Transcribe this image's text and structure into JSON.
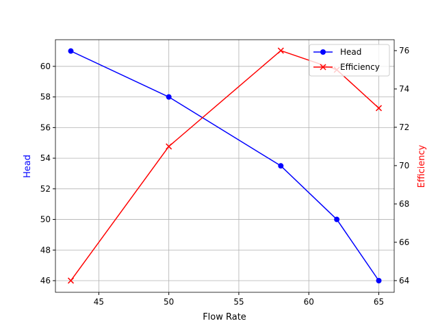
{
  "chart_data": {
    "type": "line",
    "title": "",
    "xlabel": "Flow Rate",
    "ylabel_left": "Head",
    "ylabel_right": "Efficiency",
    "xlim": [
      41.9,
      66.1
    ],
    "ylim_left": [
      45.24,
      61.74
    ],
    "ylim_right": [
      63.39,
      76.57
    ],
    "x_ticks": [
      45,
      50,
      55,
      60,
      65
    ],
    "y_ticks_left": [
      46,
      48,
      50,
      52,
      54,
      56,
      58,
      60
    ],
    "y_ticks_right": [
      64,
      66,
      68,
      70,
      72,
      74,
      76
    ],
    "grid": true,
    "legend_placement": "top-right",
    "x": [
      43,
      50,
      58,
      62,
      65
    ],
    "series": [
      {
        "name": "Head",
        "axis": "left",
        "values": [
          61,
          58,
          53.5,
          50,
          46
        ],
        "color": "#0000ff",
        "marker": "circle"
      },
      {
        "name": "Efficiency",
        "axis": "right",
        "values": [
          64,
          71,
          76,
          75,
          73
        ],
        "color": "#ff0000",
        "marker": "x"
      }
    ]
  }
}
